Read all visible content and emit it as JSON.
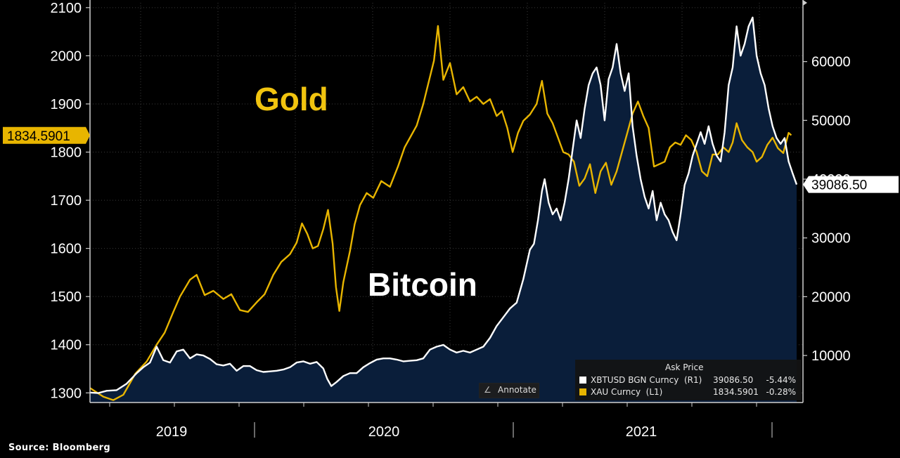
{
  "chart_data": {
    "type": "line",
    "source": "Source:  Bloomberg",
    "annotate_label": "Annotate",
    "x_labels": [
      "2019",
      "2020",
      "2021"
    ],
    "left_axis": {
      "ticks": [
        1300,
        1400,
        1500,
        1600,
        1700,
        1800,
        1900,
        2000,
        2100
      ],
      "range": [
        1280,
        2110
      ]
    },
    "right_axis": {
      "ticks": [
        10000,
        20000,
        30000,
        40000,
        50000,
        60000
      ],
      "range": [
        2000,
        70000
      ]
    },
    "annotations": {
      "gold": "Gold",
      "bitcoin": "Bitcoin"
    },
    "last_values": {
      "gold": "1834.5901",
      "bitcoin": "39086.50"
    },
    "legend": {
      "header": "Ask Price",
      "rows": [
        {
          "name": "XBTUSD BGN Curncy  (R1)",
          "price": "39086.50",
          "change": "-5.44%",
          "color": "#ffffff"
        },
        {
          "name": "XAU Curncy  (L1)",
          "price": "1834.5901",
          "change": "-0.28%",
          "color": "#e8b500"
        }
      ]
    },
    "colors": {
      "gold": "#e8b500",
      "bitcoin": "#ffffff",
      "area": "#0a1e3a"
    },
    "series": [
      {
        "name": "XAU Curncy (L1)",
        "axis": "left",
        "points": [
          [
            0.0,
            1310
          ],
          [
            0.02,
            1292
          ],
          [
            0.035,
            1285
          ],
          [
            0.05,
            1296
          ],
          [
            0.068,
            1340
          ],
          [
            0.085,
            1365
          ],
          [
            0.1,
            1400
          ],
          [
            0.112,
            1425
          ],
          [
            0.125,
            1468
          ],
          [
            0.135,
            1500
          ],
          [
            0.15,
            1535
          ],
          [
            0.16,
            1545
          ],
          [
            0.172,
            1503
          ],
          [
            0.185,
            1512
          ],
          [
            0.2,
            1495
          ],
          [
            0.212,
            1505
          ],
          [
            0.225,
            1472
          ],
          [
            0.237,
            1468
          ],
          [
            0.25,
            1488
          ],
          [
            0.262,
            1505
          ],
          [
            0.275,
            1545
          ],
          [
            0.287,
            1572
          ],
          [
            0.3,
            1588
          ],
          [
            0.31,
            1612
          ],
          [
            0.318,
            1652
          ],
          [
            0.326,
            1630
          ],
          [
            0.334,
            1600
          ],
          [
            0.342,
            1605
          ],
          [
            0.35,
            1640
          ],
          [
            0.357,
            1680
          ],
          [
            0.364,
            1610
          ],
          [
            0.369,
            1520
          ],
          [
            0.374,
            1470
          ],
          [
            0.38,
            1530
          ],
          [
            0.39,
            1595
          ],
          [
            0.397,
            1650
          ],
          [
            0.405,
            1690
          ],
          [
            0.415,
            1715
          ],
          [
            0.425,
            1705
          ],
          [
            0.437,
            1740
          ],
          [
            0.45,
            1728
          ],
          [
            0.462,
            1770
          ],
          [
            0.472,
            1810
          ],
          [
            0.48,
            1830
          ],
          [
            0.49,
            1855
          ],
          [
            0.5,
            1900
          ],
          [
            0.508,
            1945
          ],
          [
            0.516,
            1990
          ],
          [
            0.522,
            2062
          ],
          [
            0.53,
            1950
          ],
          [
            0.54,
            1985
          ],
          [
            0.55,
            1920
          ],
          [
            0.56,
            1935
          ],
          [
            0.57,
            1905
          ],
          [
            0.58,
            1915
          ],
          [
            0.59,
            1900
          ],
          [
            0.6,
            1910
          ],
          [
            0.61,
            1875
          ],
          [
            0.618,
            1885
          ],
          [
            0.626,
            1850
          ],
          [
            0.634,
            1800
          ],
          [
            0.642,
            1840
          ],
          [
            0.65,
            1865
          ],
          [
            0.66,
            1878
          ],
          [
            0.67,
            1900
          ],
          [
            0.678,
            1948
          ],
          [
            0.686,
            1880
          ],
          [
            0.694,
            1860
          ],
          [
            0.702,
            1830
          ],
          [
            0.71,
            1800
          ],
          [
            0.718,
            1795
          ],
          [
            0.726,
            1780
          ],
          [
            0.734,
            1730
          ],
          [
            0.742,
            1745
          ],
          [
            0.75,
            1775
          ],
          [
            0.758,
            1715
          ],
          [
            0.766,
            1760
          ],
          [
            0.774,
            1778
          ],
          [
            0.782,
            1732
          ],
          [
            0.79,
            1760
          ],
          [
            0.798,
            1800
          ],
          [
            0.806,
            1840
          ],
          [
            0.814,
            1880
          ],
          [
            0.822,
            1905
          ],
          [
            0.83,
            1875
          ],
          [
            0.838,
            1850
          ],
          [
            0.846,
            1770
          ],
          [
            0.854,
            1775
          ],
          [
            0.862,
            1780
          ],
          [
            0.87,
            1810
          ],
          [
            0.878,
            1820
          ],
          [
            0.886,
            1815
          ],
          [
            0.894,
            1835
          ],
          [
            0.902,
            1825
          ],
          [
            0.91,
            1800
          ],
          [
            0.918,
            1760
          ],
          [
            0.926,
            1750
          ],
          [
            0.934,
            1795
          ],
          [
            0.942,
            1795
          ],
          [
            0.95,
            1810
          ],
          [
            0.958,
            1800
          ],
          [
            0.964,
            1820
          ],
          [
            0.97,
            1860
          ],
          [
            0.978,
            1825
          ],
          [
            0.986,
            1810
          ],
          [
            0.994,
            1800
          ],
          [
            1.0,
            1780
          ],
          [
            1.008,
            1790
          ],
          [
            1.016,
            1815
          ],
          [
            1.024,
            1830
          ],
          [
            1.032,
            1808
          ],
          [
            1.04,
            1798
          ],
          [
            1.048,
            1840
          ],
          [
            1.052,
            1835
          ]
        ]
      },
      {
        "name": "XBTUSD BGN Curncy (R1)",
        "axis": "right",
        "points": [
          [
            0.0,
            3700
          ],
          [
            0.012,
            3600
          ],
          [
            0.025,
            4000
          ],
          [
            0.04,
            4100
          ],
          [
            0.055,
            5200
          ],
          [
            0.07,
            7000
          ],
          [
            0.08,
            8000
          ],
          [
            0.09,
            8800
          ],
          [
            0.1,
            11500
          ],
          [
            0.11,
            9200
          ],
          [
            0.12,
            8800
          ],
          [
            0.13,
            10700
          ],
          [
            0.14,
            11000
          ],
          [
            0.15,
            9500
          ],
          [
            0.16,
            10200
          ],
          [
            0.17,
            10000
          ],
          [
            0.18,
            9400
          ],
          [
            0.19,
            8500
          ],
          [
            0.2,
            8300
          ],
          [
            0.21,
            8600
          ],
          [
            0.22,
            7400
          ],
          [
            0.23,
            8200
          ],
          [
            0.24,
            8200
          ],
          [
            0.25,
            7500
          ],
          [
            0.26,
            7200
          ],
          [
            0.27,
            7300
          ],
          [
            0.28,
            7400
          ],
          [
            0.29,
            7600
          ],
          [
            0.3,
            8000
          ],
          [
            0.31,
            8800
          ],
          [
            0.32,
            9000
          ],
          [
            0.33,
            8600
          ],
          [
            0.34,
            8900
          ],
          [
            0.35,
            7800
          ],
          [
            0.356,
            6000
          ],
          [
            0.362,
            4800
          ],
          [
            0.37,
            5500
          ],
          [
            0.38,
            6500
          ],
          [
            0.39,
            7000
          ],
          [
            0.4,
            7000
          ],
          [
            0.41,
            8000
          ],
          [
            0.42,
            8700
          ],
          [
            0.43,
            9300
          ],
          [
            0.44,
            9500
          ],
          [
            0.45,
            9500
          ],
          [
            0.46,
            9300
          ],
          [
            0.47,
            9000
          ],
          [
            0.48,
            9100
          ],
          [
            0.49,
            9200
          ],
          [
            0.5,
            9500
          ],
          [
            0.51,
            11000
          ],
          [
            0.52,
            11500
          ],
          [
            0.53,
            11800
          ],
          [
            0.54,
            11000
          ],
          [
            0.55,
            10500
          ],
          [
            0.56,
            10800
          ],
          [
            0.57,
            10500
          ],
          [
            0.58,
            11000
          ],
          [
            0.59,
            11500
          ],
          [
            0.6,
            13000
          ],
          [
            0.61,
            15000
          ],
          [
            0.62,
            16500
          ],
          [
            0.63,
            18000
          ],
          [
            0.64,
            19000
          ],
          [
            0.65,
            23000
          ],
          [
            0.66,
            28000
          ],
          [
            0.666,
            29000
          ],
          [
            0.672,
            33000
          ],
          [
            0.678,
            38000
          ],
          [
            0.682,
            40000
          ],
          [
            0.688,
            36000
          ],
          [
            0.694,
            34000
          ],
          [
            0.7,
            35000
          ],
          [
            0.706,
            33000
          ],
          [
            0.712,
            36000
          ],
          [
            0.718,
            40000
          ],
          [
            0.724,
            45000
          ],
          [
            0.73,
            50000
          ],
          [
            0.736,
            47000
          ],
          [
            0.742,
            52000
          ],
          [
            0.748,
            56000
          ],
          [
            0.754,
            58000
          ],
          [
            0.76,
            59000
          ],
          [
            0.766,
            56000
          ],
          [
            0.772,
            50000
          ],
          [
            0.778,
            57000
          ],
          [
            0.784,
            59000
          ],
          [
            0.79,
            63000
          ],
          [
            0.796,
            58000
          ],
          [
            0.802,
            55000
          ],
          [
            0.808,
            58000
          ],
          [
            0.814,
            49000
          ],
          [
            0.82,
            44000
          ],
          [
            0.826,
            40000
          ],
          [
            0.832,
            37000
          ],
          [
            0.838,
            35000
          ],
          [
            0.844,
            38000
          ],
          [
            0.85,
            33000
          ],
          [
            0.856,
            36000
          ],
          [
            0.862,
            34000
          ],
          [
            0.868,
            33000
          ],
          [
            0.874,
            31000
          ],
          [
            0.88,
            29600
          ],
          [
            0.886,
            34000
          ],
          [
            0.892,
            39000
          ],
          [
            0.898,
            41000
          ],
          [
            0.904,
            44000
          ],
          [
            0.91,
            46000
          ],
          [
            0.916,
            48000
          ],
          [
            0.922,
            46000
          ],
          [
            0.928,
            49000
          ],
          [
            0.934,
            46000
          ],
          [
            0.94,
            44000
          ],
          [
            0.946,
            43000
          ],
          [
            0.952,
            48000
          ],
          [
            0.958,
            56000
          ],
          [
            0.964,
            59000
          ],
          [
            0.97,
            66000
          ],
          [
            0.976,
            61000
          ],
          [
            0.982,
            63000
          ],
          [
            0.988,
            66000
          ],
          [
            0.994,
            67500
          ],
          [
            1.0,
            61000
          ],
          [
            1.006,
            58000
          ],
          [
            1.012,
            56000
          ],
          [
            1.018,
            52000
          ],
          [
            1.024,
            49000
          ],
          [
            1.03,
            47000
          ],
          [
            1.036,
            46000
          ],
          [
            1.042,
            47000
          ],
          [
            1.048,
            43000
          ],
          [
            1.054,
            41000
          ],
          [
            1.06,
            39086
          ]
        ]
      }
    ]
  }
}
